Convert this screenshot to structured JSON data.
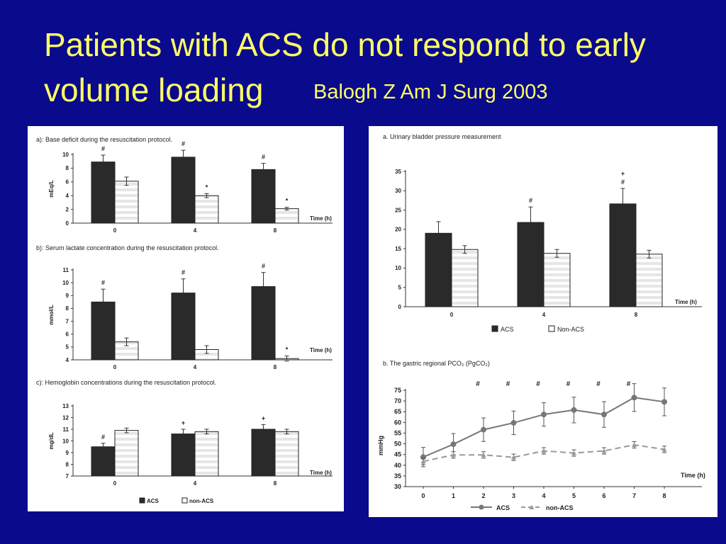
{
  "slide": {
    "title_line1": "Patients with ACS do not respond to early",
    "title_line2": "volume loading",
    "citation": "Balogh Z Am J Surg 2003",
    "title_color": "#ffff66",
    "background_color": "#0a0a8c"
  },
  "colors": {
    "acs": "#2a2a2a",
    "non_acs": "#ffffff",
    "non_acs_stripe": "#e6e6e6",
    "line_acs": "#777777",
    "line_non_acs": "#999999"
  },
  "chart_data": [
    {
      "id": "a",
      "type": "bar",
      "title": "a): Base deficit during the resuscitation protocol.",
      "ylabel": "mEq/L",
      "xlabel": "Time (h)",
      "categories": [
        "0",
        "4",
        "8"
      ],
      "ylim": [
        0,
        10
      ],
      "yticks": [
        "0",
        "2",
        "4",
        "6",
        "8",
        "10"
      ],
      "series": [
        {
          "name": "ACS",
          "values": [
            8.9,
            9.6,
            7.8
          ],
          "errors": [
            1.0,
            1.0,
            0.9
          ]
        },
        {
          "name": "non-ACS",
          "values": [
            6.1,
            4.0,
            2.1
          ],
          "errors": [
            0.6,
            0.3,
            0.2
          ]
        }
      ],
      "annotations": [
        {
          "category": 0,
          "series": 0,
          "text": "#"
        },
        {
          "category": 1,
          "series": 0,
          "text": "#"
        },
        {
          "category": 1,
          "series": 1,
          "text": "*"
        },
        {
          "category": 2,
          "series": 0,
          "text": "#"
        },
        {
          "category": 2,
          "series": 1,
          "text": "*"
        }
      ]
    },
    {
      "id": "b",
      "type": "bar",
      "title": "b): Serum lactate concentration during the resuscitation protocol.",
      "ylabel": "mmol/L",
      "xlabel": "Time (h)",
      "categories": [
        "0",
        "4",
        "8"
      ],
      "ylim": [
        4,
        11
      ],
      "yticks": [
        "4",
        "5",
        "6",
        "7",
        "8",
        "9",
        "10",
        "11"
      ],
      "series": [
        {
          "name": "ACS",
          "values": [
            8.5,
            9.2,
            9.7
          ],
          "errors": [
            1.0,
            1.1,
            1.1
          ]
        },
        {
          "name": "non-ACS",
          "values": [
            5.4,
            4.8,
            4.1
          ],
          "errors": [
            0.3,
            0.3,
            0.2
          ]
        }
      ],
      "annotations": [
        {
          "category": 0,
          "series": 0,
          "text": "#"
        },
        {
          "category": 1,
          "series": 0,
          "text": "#"
        },
        {
          "category": 2,
          "series": 0,
          "text": "#"
        },
        {
          "category": 2,
          "series": 1,
          "text": "*"
        }
      ]
    },
    {
      "id": "c",
      "type": "bar",
      "title": "c): Hemoglobin concentrations during the resuscitation protocol.",
      "ylabel": "mg/dL",
      "xlabel": "Time (h)",
      "categories": [
        "0",
        "4",
        "8"
      ],
      "ylim": [
        7,
        13
      ],
      "yticks": [
        "7",
        "8",
        "9",
        "10",
        "11",
        "12",
        "13"
      ],
      "series": [
        {
          "name": "ACS",
          "values": [
            9.5,
            10.6,
            11.0
          ],
          "errors": [
            0.3,
            0.4,
            0.4
          ]
        },
        {
          "name": "non-ACS",
          "values": [
            10.9,
            10.8,
            10.8
          ],
          "errors": [
            0.2,
            0.2,
            0.2
          ]
        }
      ],
      "annotations": [
        {
          "category": 0,
          "series": 0,
          "text": "#"
        },
        {
          "category": 1,
          "series": 0,
          "text": "+"
        },
        {
          "category": 2,
          "series": 0,
          "text": "+"
        }
      ],
      "legend": [
        "ACS",
        "non-ACS"
      ]
    },
    {
      "id": "d",
      "type": "bar",
      "title": "a.   Urinary bladder pressure measurement",
      "ylabel": "",
      "xlabel": "Time (h)",
      "categories": [
        "0",
        "4",
        "8"
      ],
      "ylim": [
        0,
        35
      ],
      "yticks": [
        "0",
        "5",
        "10",
        "15",
        "20",
        "25",
        "30",
        "35"
      ],
      "series": [
        {
          "name": "ACS",
          "values": [
            19.0,
            21.8,
            26.6
          ],
          "errors": [
            3.0,
            4.0,
            4.0
          ]
        },
        {
          "name": "Non-ACS",
          "values": [
            14.8,
            13.8,
            13.6
          ],
          "errors": [
            1.0,
            1.0,
            1.0
          ]
        }
      ],
      "annotations": [
        {
          "category": 1,
          "series": 0,
          "text": "#"
        },
        {
          "category": 2,
          "series": 0,
          "text": "+"
        },
        {
          "category": 2,
          "series": 0,
          "text": "#"
        }
      ],
      "legend": [
        "ACS",
        "Non-ACS"
      ]
    },
    {
      "id": "e",
      "type": "line",
      "title": "b.   The gastric regional PCO₂ (PgCO₂)",
      "ylabel": "mmHg",
      "xlabel": "Time (h)",
      "x": [
        0,
        1,
        2,
        3,
        4,
        5,
        6,
        7,
        8
      ],
      "xticks": [
        "0",
        "1",
        "2",
        "3",
        "4",
        "5",
        "6",
        "7",
        "8"
      ],
      "ylim": [
        30,
        75
      ],
      "yticks": [
        "30",
        "35",
        "40",
        "45",
        "50",
        "55",
        "60",
        "65",
        "70",
        "75"
      ],
      "series": [
        {
          "name": "ACS",
          "values": [
            43.8,
            49.8,
            56.6,
            59.8,
            63.7,
            65.8,
            63.7,
            71.6,
            69.6
          ],
          "errors": [
            4.5,
            5.0,
            5.5,
            5.5,
            5.5,
            6.0,
            6.0,
            6.5,
            6.5
          ]
        },
        {
          "name": "non-ACS",
          "values": [
            41.8,
            44.8,
            44.8,
            43.7,
            46.7,
            45.7,
            46.7,
            49.5,
            47.4
          ],
          "errors": [
            1.5,
            1.5,
            1.5,
            1.5,
            1.5,
            1.5,
            1.5,
            1.5,
            1.5
          ]
        }
      ],
      "annotations": [
        {
          "x": 2,
          "text": "#"
        },
        {
          "x": 3,
          "text": "#"
        },
        {
          "x": 4,
          "text": "#"
        },
        {
          "x": 5,
          "text": "#"
        },
        {
          "x": 6,
          "text": "#"
        },
        {
          "x": 7,
          "text": "#"
        }
      ],
      "legend": [
        "ACS",
        "non-ACS"
      ]
    }
  ]
}
